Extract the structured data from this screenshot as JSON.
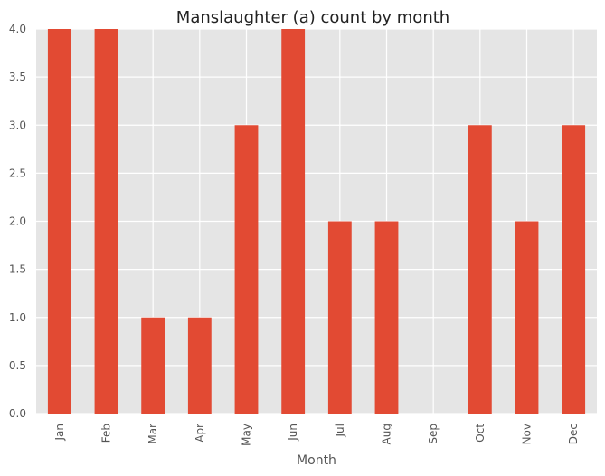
{
  "chart_data": {
    "type": "bar",
    "title": "Manslaughter (a) count by month",
    "xlabel": "Month",
    "ylabel": "",
    "categories": [
      "Jan",
      "Feb",
      "Mar",
      "Apr",
      "May",
      "Jun",
      "Jul",
      "Aug",
      "Sep",
      "Oct",
      "Nov",
      "Dec"
    ],
    "values": [
      4,
      4,
      1,
      1,
      3,
      4,
      2,
      2,
      0,
      3,
      2,
      3
    ],
    "ylim": [
      0,
      4
    ],
    "yticks": [
      "0.0",
      "0.5",
      "1.0",
      "1.5",
      "2.0",
      "2.5",
      "3.0",
      "3.5",
      "4.0"
    ],
    "grid": true,
    "legend": "none",
    "colors": {
      "bar": "#e24a33",
      "plot_bg": "#e5e5e5",
      "grid": "#ffffff"
    }
  }
}
